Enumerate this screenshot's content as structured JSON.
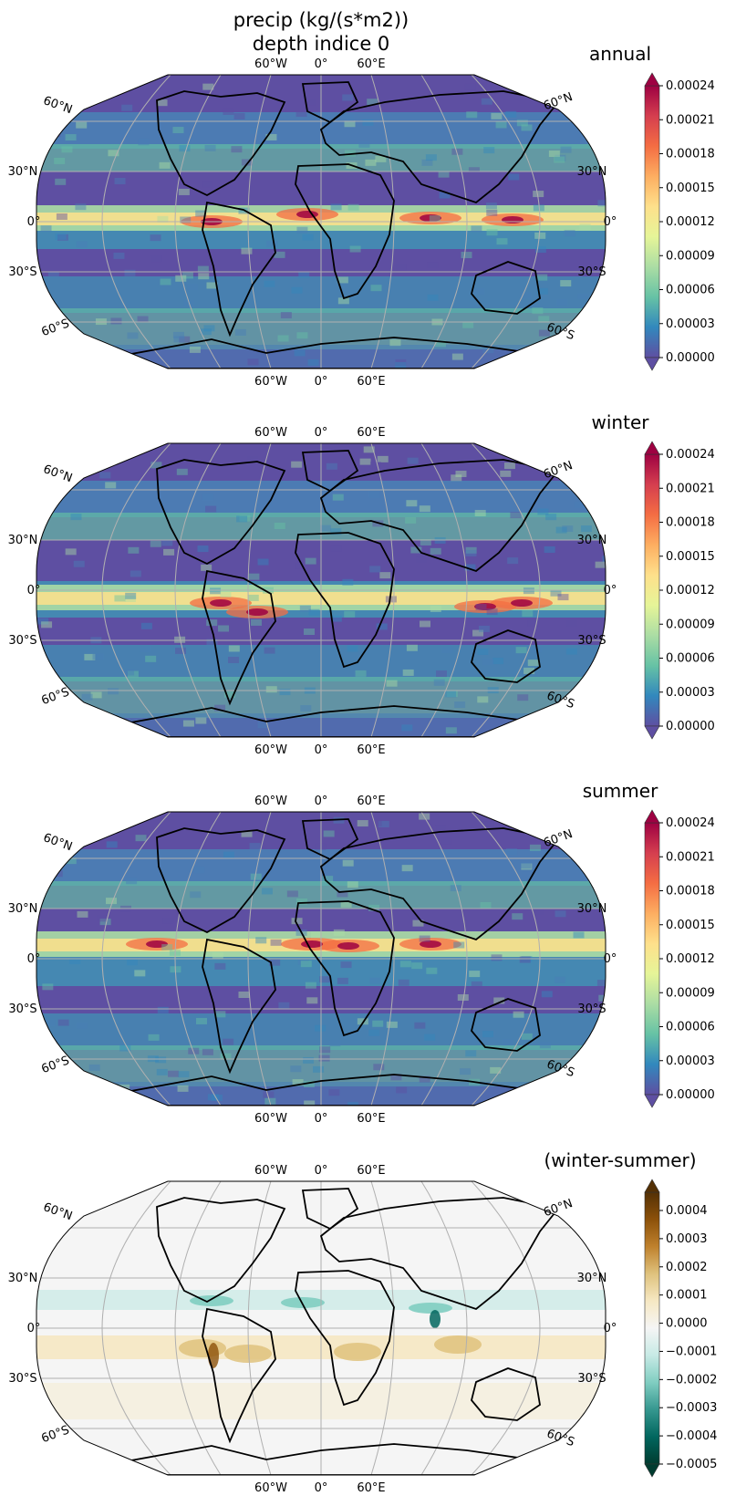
{
  "figure": {
    "title_line1": "precip (kg/(s*m2))",
    "title_line2": "depth indice 0"
  },
  "gridline_labels": {
    "lon": [
      "60°W",
      "0°",
      "60°E"
    ],
    "lat_left": [
      "60°N",
      "30°N",
      "0°",
      "30°S",
      "60°S"
    ],
    "lat_right": [
      "60°N",
      "30°N",
      "0°",
      "30°S",
      "60°S"
    ]
  },
  "panels": [
    {
      "title": "annual",
      "colormap": "Spectral_r",
      "colorbar_ticks": [
        "0.00024",
        "0.00021",
        "0.00018",
        "0.00015",
        "0.00012",
        "0.00009",
        "0.00006",
        "0.00003",
        "0.00000"
      ],
      "colorbar_range": [
        0,
        0.00024
      ],
      "colorbar_extend": "both"
    },
    {
      "title": "winter",
      "colormap": "Spectral_r",
      "colorbar_ticks": [
        "0.00024",
        "0.00021",
        "0.00018",
        "0.00015",
        "0.00012",
        "0.00009",
        "0.00006",
        "0.00003",
        "0.00000"
      ],
      "colorbar_range": [
        0,
        0.00024
      ],
      "colorbar_extend": "both"
    },
    {
      "title": "summer",
      "colormap": "Spectral_r",
      "colorbar_ticks": [
        "0.00024",
        "0.00021",
        "0.00018",
        "0.00015",
        "0.00012",
        "0.00009",
        "0.00006",
        "0.00003",
        "0.00000"
      ],
      "colorbar_range": [
        0,
        0.00024
      ],
      "colorbar_extend": "both"
    },
    {
      "title": "(winter-summer)",
      "colormap": "BrBG",
      "colorbar_ticks": [
        "0.0004",
        "0.0003",
        "0.0002",
        "0.0001",
        "0.0000",
        "−0.0001",
        "−0.0002",
        "−0.0003",
        "−0.0004",
        "−0.0005"
      ],
      "colorbar_range": [
        -0.0005,
        0.0005
      ],
      "colorbar_extend": "both"
    }
  ],
  "colors": {
    "ocean_low": "#5e4fa2",
    "coast": "#000000",
    "gridline": "#b0b0b0"
  }
}
